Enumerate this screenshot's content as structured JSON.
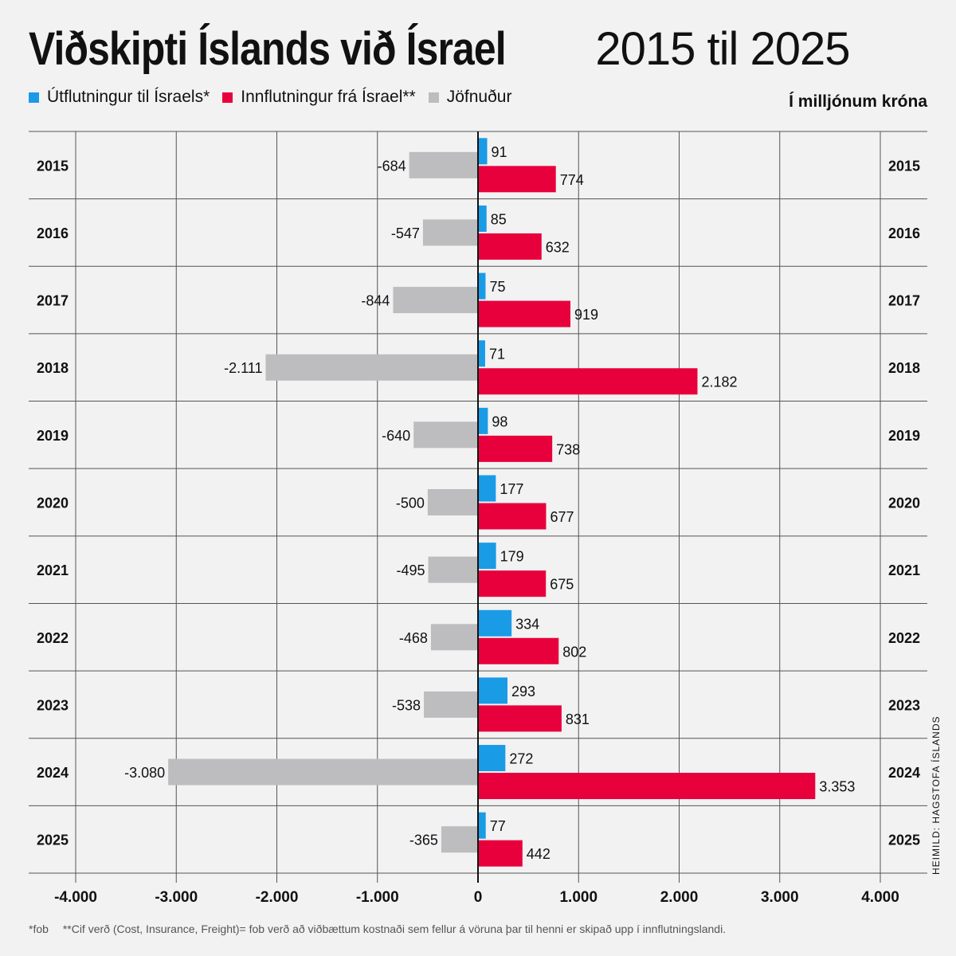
{
  "title": {
    "bold": "Viðskipti Íslands við Ísrael",
    "light": "2015 til 2025"
  },
  "unit_label": "Í milljónum króna",
  "source": "HEIMILD: HAGSTOFA ÍSLANDS",
  "footnotes": {
    "fob": "*fob",
    "cif": "**Cif verð (Cost, Insurance, Freight)= fob verð að viðbættum kostnaði sem fellur á vöruna þar til henni er skipað upp í innflutningslandi."
  },
  "colors": {
    "export": "#1a9be6",
    "import": "#e8003d",
    "balance": "#bdbdbf",
    "grid": "#555555",
    "zero": "#111111"
  },
  "chart_data": {
    "type": "bar",
    "orientation": "horizontal",
    "categories": [
      "2015",
      "2016",
      "2017",
      "2018",
      "2019",
      "2020",
      "2021",
      "2022",
      "2023",
      "2024",
      "2025"
    ],
    "series": [
      {
        "name": "Útflutningur til Ísraels*",
        "values": [
          91,
          85,
          75,
          71,
          98,
          177,
          179,
          334,
          293,
          272,
          77
        ]
      },
      {
        "name": "Innflutningur frá Ísrael**",
        "values": [
          774,
          632,
          919,
          2182,
          738,
          677,
          675,
          802,
          831,
          3353,
          442
        ]
      },
      {
        "name": "Jöfnuður",
        "values": [
          -684,
          -547,
          -844,
          -2111,
          -640,
          -500,
          -495,
          -468,
          -538,
          -3080,
          -365
        ]
      }
    ],
    "value_labels": {
      "export": [
        "91",
        "85",
        "75",
        "71",
        "98",
        "177",
        "179",
        "334",
        "293",
        "272",
        "77"
      ],
      "import": [
        "774",
        "632",
        "919",
        "2.182",
        "738",
        "677",
        "675",
        "802",
        "831",
        "3.353",
        "442"
      ],
      "balance": [
        "-684",
        "-547",
        "-844",
        "-2.111",
        "-640",
        "-500",
        "-495",
        "-468",
        "-538",
        "-3.080",
        "-365"
      ]
    },
    "xlim": [
      -4000,
      4000
    ],
    "xticks": [
      -4000,
      -3000,
      -2000,
      -1000,
      0,
      1000,
      2000,
      3000,
      4000
    ],
    "xtick_labels": [
      "-4.000",
      "-3.000",
      "-2.000",
      "-1.000",
      "0",
      "1.000",
      "2.000",
      "3.000",
      "4.000"
    ],
    "grid": true,
    "legend_position": "top-left"
  }
}
